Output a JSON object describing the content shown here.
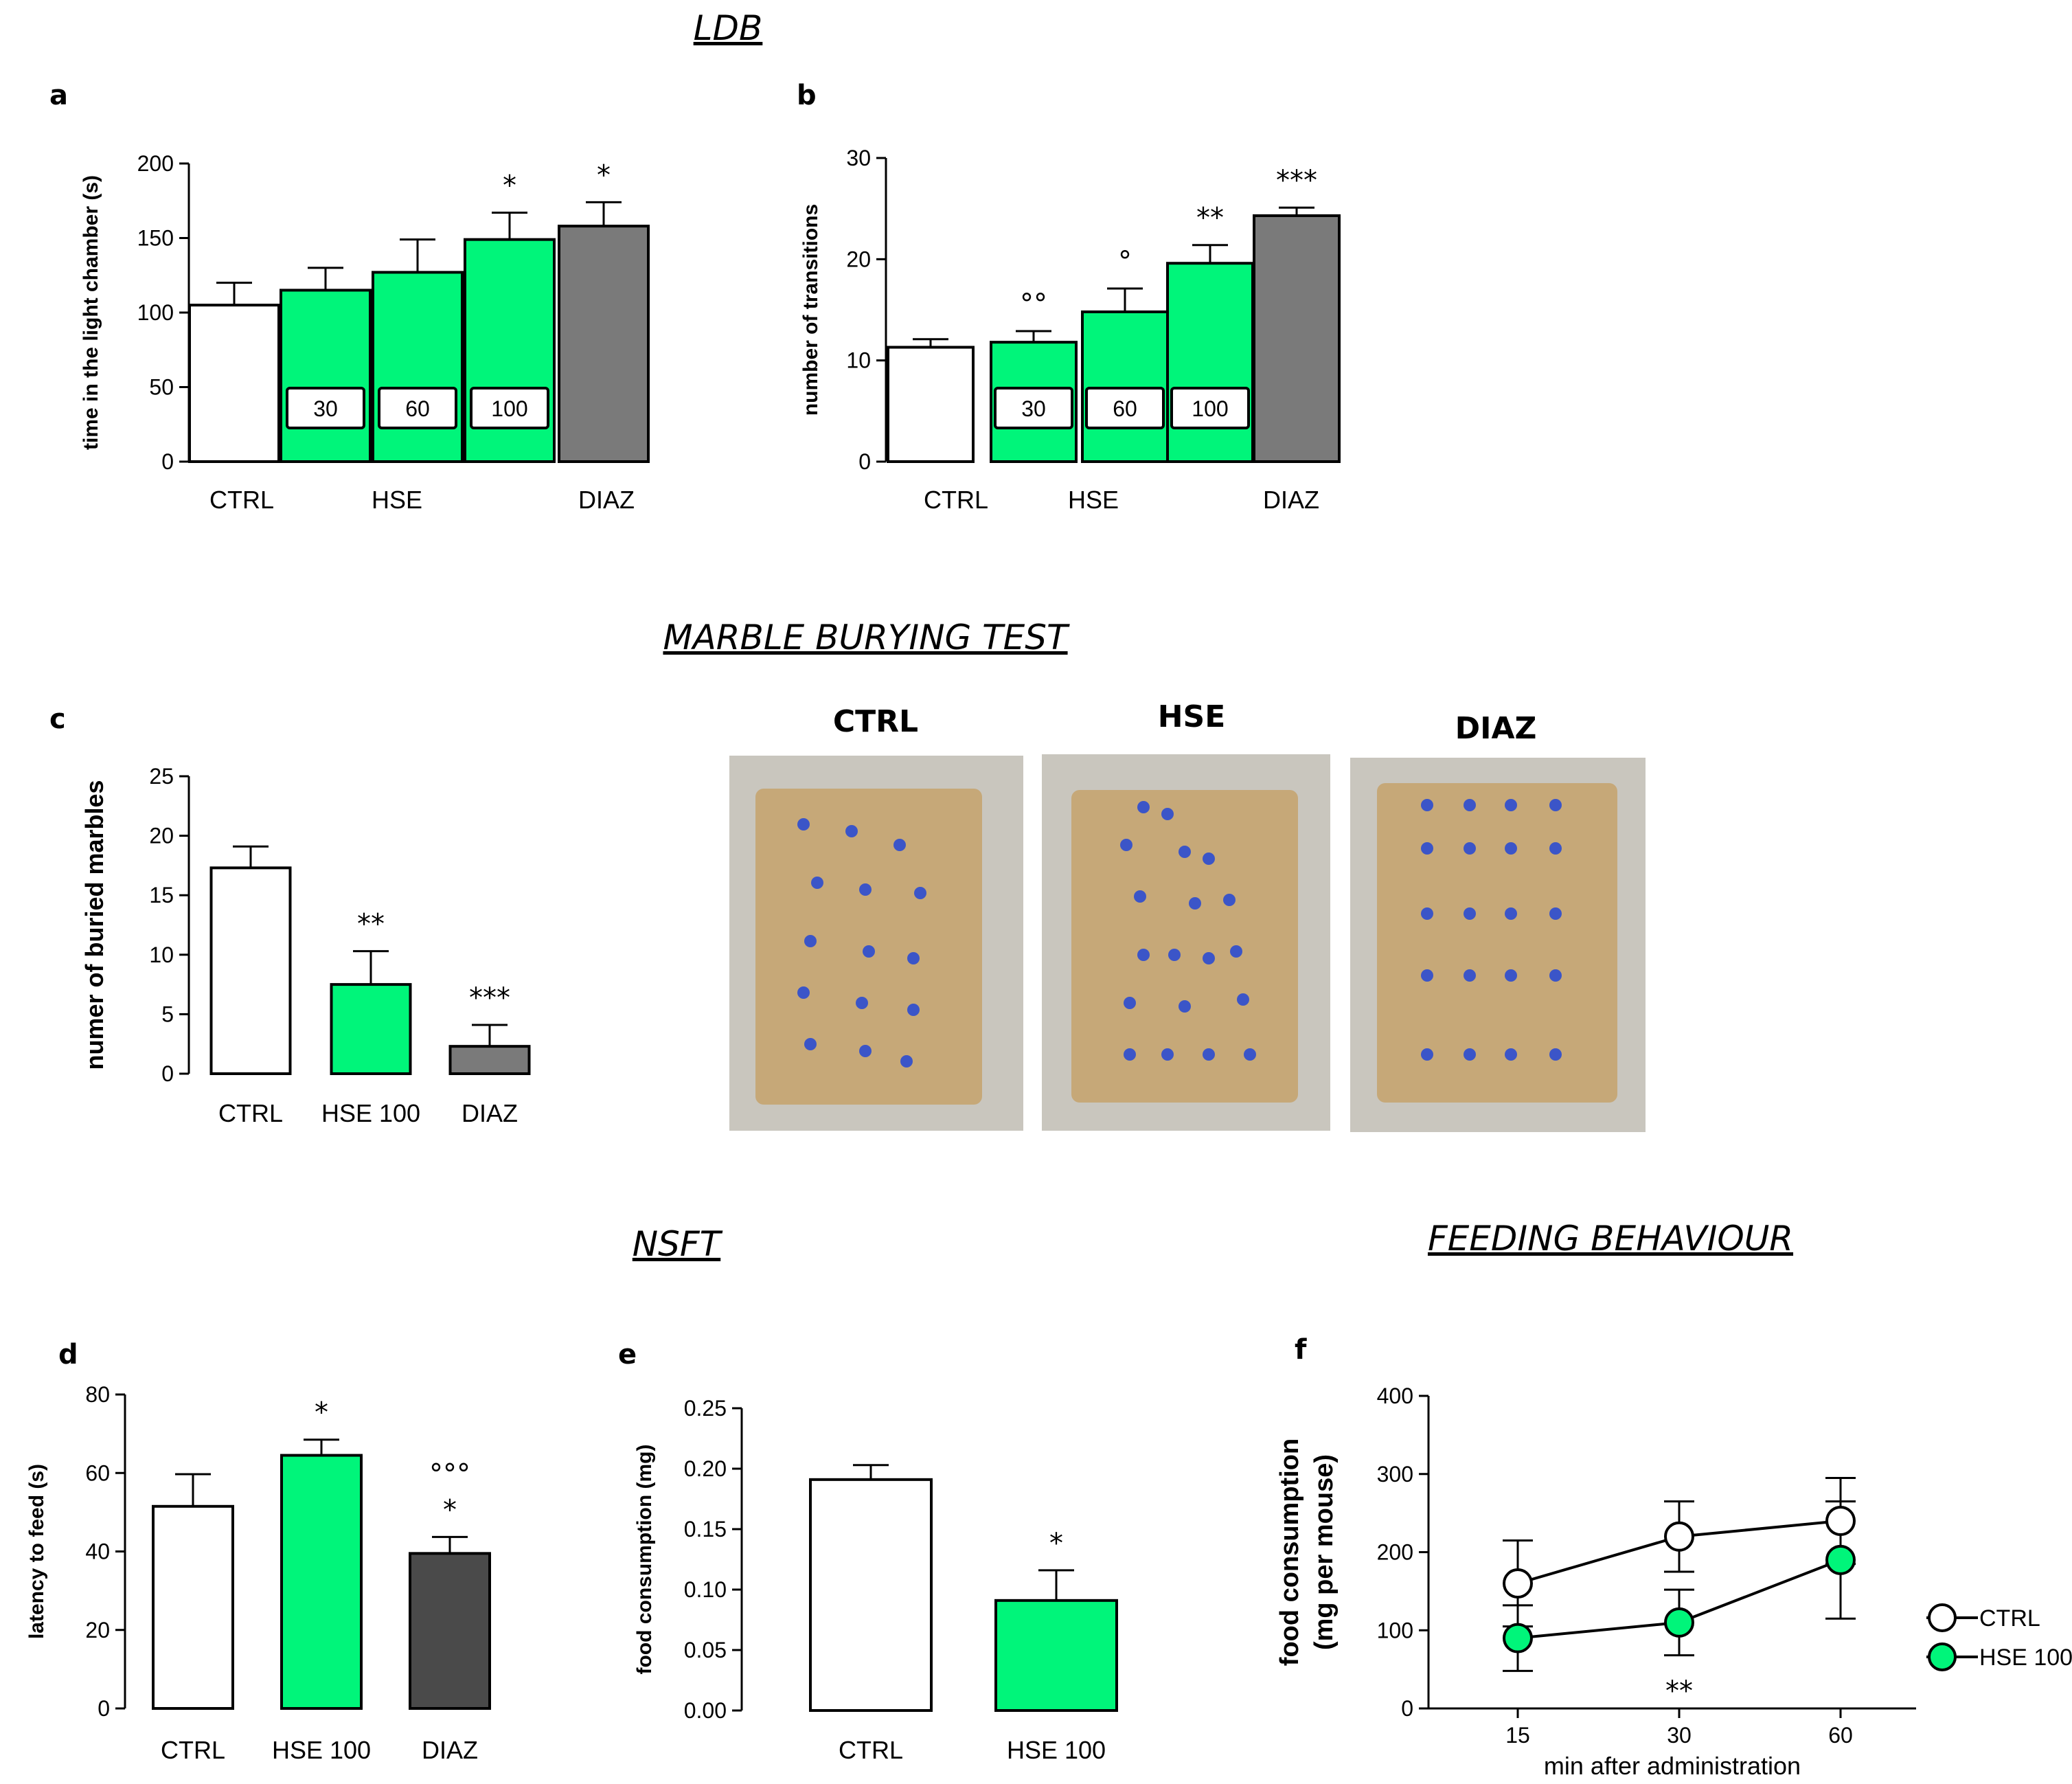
{
  "section_titles": {
    "ldb": "LDB",
    "marble": "MARBLE BURYING TEST",
    "nsft": "NSFT",
    "feeding": "FEEDING BEHAVIOUR"
  },
  "photos": {
    "labels": [
      "CTRL",
      "HSE",
      "DIAZ"
    ],
    "colors": {
      "tray": "#c9c6be",
      "bedding": "#c6a878",
      "marble": "#3b55c8"
    }
  },
  "colors": {
    "ctrl": "#ffffff",
    "hse": "#00f57a",
    "diaz_light": "#7a7a7a",
    "diaz_dark": "#4a4a4a",
    "axis": "#000000"
  },
  "chart_data": [
    {
      "panel": "a",
      "type": "bar",
      "title": "",
      "ylabel": "time in the light chamber (s)",
      "ylim": [
        0,
        200
      ],
      "yticks": [
        "0",
        "50",
        "100",
        "150",
        "200"
      ],
      "bars": [
        {
          "value": 105,
          "err": 15,
          "color": "ctrl",
          "dose": "",
          "star": ""
        },
        {
          "value": 115,
          "err": 15,
          "color": "hse",
          "dose": "30",
          "star": ""
        },
        {
          "value": 127,
          "err": 22,
          "color": "hse",
          "dose": "60",
          "star": ""
        },
        {
          "value": 149,
          "err": 18,
          "color": "hse",
          "dose": "100",
          "star": "*"
        },
        {
          "value": 158,
          "err": 16,
          "color": "diaz_light",
          "dose": "",
          "star": "*"
        }
      ],
      "group_labels": [
        "CTRL",
        "HSE",
        "DIAZ"
      ]
    },
    {
      "panel": "b",
      "type": "bar",
      "title": "",
      "ylabel": "number of transitions",
      "ylim": [
        0,
        30
      ],
      "yticks": [
        "0",
        "10",
        "20",
        "30"
      ],
      "bars": [
        {
          "value": 11.3,
          "err": 0.8,
          "color": "ctrl",
          "dose": "",
          "star": ""
        },
        {
          "value": 11.8,
          "err": 1.1,
          "color": "hse",
          "dose": "30",
          "star": "°°"
        },
        {
          "value": 14.8,
          "err": 2.3,
          "color": "hse",
          "dose": "60",
          "star": "°"
        },
        {
          "value": 19.6,
          "err": 1.8,
          "color": "hse",
          "dose": "100",
          "star": "**"
        },
        {
          "value": 24.3,
          "err": 0.8,
          "color": "diaz_light",
          "dose": "",
          "star": "***"
        }
      ],
      "group_labels": [
        "CTRL",
        "HSE",
        "DIAZ"
      ]
    },
    {
      "panel": "c",
      "type": "bar",
      "title": "",
      "ylabel": "numer of buried marbles",
      "ylim": [
        0,
        25
      ],
      "yticks": [
        "0",
        "5",
        "10",
        "15",
        "20",
        "25"
      ],
      "bars": [
        {
          "value": 17.3,
          "err": 1.8,
          "color": "ctrl",
          "label": "CTRL",
          "star": ""
        },
        {
          "value": 7.5,
          "err": 2.8,
          "color": "hse",
          "label": "HSE 100",
          "star": "**"
        },
        {
          "value": 2.3,
          "err": 1.8,
          "color": "diaz_light",
          "label": "DIAZ",
          "star": "***"
        }
      ]
    },
    {
      "panel": "d",
      "type": "bar",
      "title": "",
      "ylabel": "latency to feed (s)",
      "ylim": [
        0,
        80
      ],
      "yticks": [
        "0",
        "20",
        "40",
        "60",
        "80"
      ],
      "bars": [
        {
          "value": 51.5,
          "err": 8.2,
          "color": "ctrl",
          "label": "CTRL",
          "star": ""
        },
        {
          "value": 64.5,
          "err": 4.0,
          "color": "hse",
          "label": "HSE 100",
          "star": "*"
        },
        {
          "value": 39.5,
          "err": 4.2,
          "color": "diaz_dark",
          "label": "DIAZ",
          "star": "*",
          "mark": "°°°"
        }
      ]
    },
    {
      "panel": "e",
      "type": "bar",
      "title": "",
      "ylabel": "food consumption (mg)",
      "ylim": [
        0,
        0.25
      ],
      "yticks": [
        "0.00",
        "0.05",
        "0.10",
        "0.15",
        "0.20",
        "0.25"
      ],
      "bars": [
        {
          "value": 0.191,
          "err": 0.012,
          "color": "ctrl",
          "label": "CTRL",
          "star": ""
        },
        {
          "value": 0.091,
          "err": 0.025,
          "color": "hse",
          "label": "HSE 100",
          "star": "*"
        }
      ]
    },
    {
      "panel": "f",
      "type": "line",
      "title": "",
      "xlabel": "min after administration",
      "ylabel": "food consumption",
      "ylabel2": "(mg per mouse)",
      "x": [
        "15",
        "30",
        "60"
      ],
      "ylim": [
        0,
        400
      ],
      "yticks": [
        "0",
        "100",
        "200",
        "300",
        "400"
      ],
      "annotation": "**",
      "series": [
        {
          "name": "CTRL",
          "values": [
            160,
            220,
            240
          ],
          "err": [
            55,
            45,
            55
          ],
          "color": "ctrl"
        },
        {
          "name": "HSE 100",
          "values": [
            90,
            110,
            190
          ],
          "err": [
            42,
            42,
            75
          ],
          "color": "hse"
        }
      ]
    }
  ]
}
